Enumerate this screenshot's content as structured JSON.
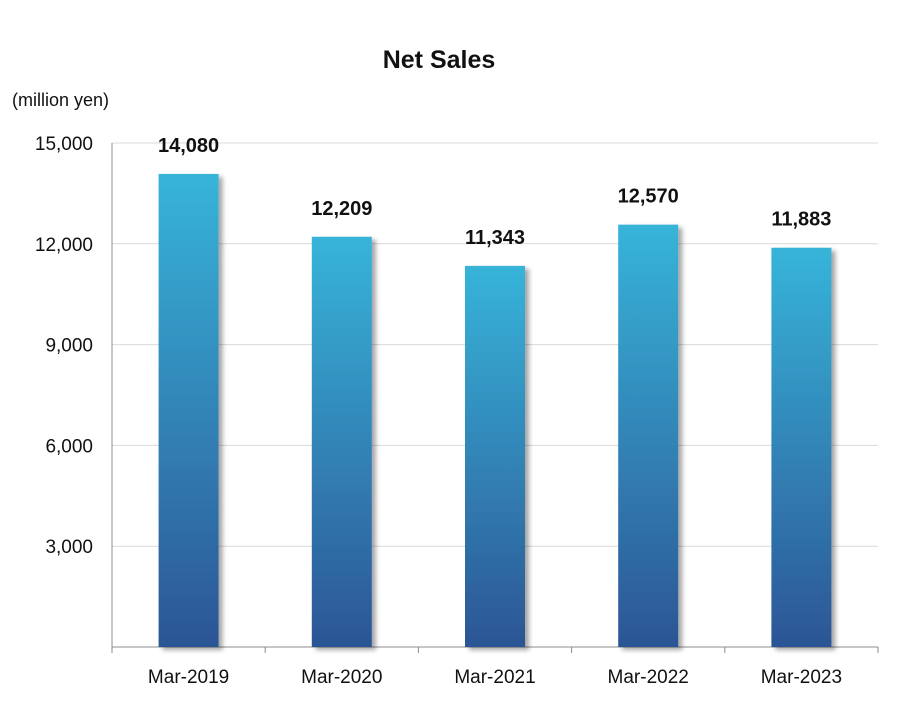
{
  "chart_data": {
    "type": "bar",
    "title": "Net Sales",
    "unit_label": "(million yen)",
    "xlabel": "",
    "ylabel": "",
    "categories": [
      "Mar-2019",
      "Mar-2020",
      "Mar-2021",
      "Mar-2022",
      "Mar-2023"
    ],
    "values": [
      14080,
      12209,
      11343,
      12570,
      11883
    ],
    "value_labels": [
      "14,080",
      "12,209",
      "11,343",
      "12,570",
      "11,883"
    ],
    "ylim": [
      0,
      15000
    ],
    "yticks": [
      3000,
      6000,
      9000,
      12000,
      15000
    ],
    "ytick_labels": [
      "3,000",
      "6,000",
      "9,000",
      "12,000",
      "15,000"
    ],
    "grid": true,
    "legend": "none",
    "colors": {
      "bar_top": "#37b4d9",
      "bar_bottom": "#2c5595",
      "grid": "#d9d9d9",
      "axis": "#8c8c8c"
    }
  }
}
